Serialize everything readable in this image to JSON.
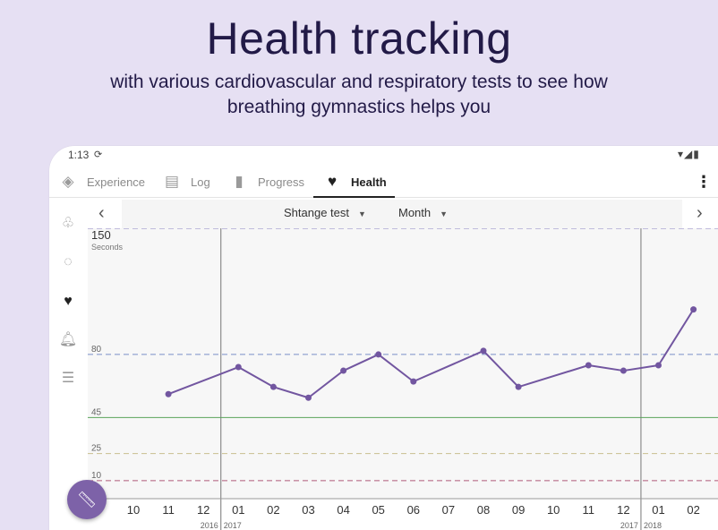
{
  "promo": {
    "title": "Health tracking",
    "subtitle_line1": "with various cardiovascular and respiratory tests to see how",
    "subtitle_line2": "breathing gymnastics helps you"
  },
  "status_bar": {
    "time": "1:13",
    "sync_icon": "sync-icon",
    "icons": "▾◢▮"
  },
  "tabs": [
    {
      "label": "Experience",
      "icon": "compass-icon",
      "active": false
    },
    {
      "label": "Log",
      "icon": "list-icon",
      "active": false
    },
    {
      "label": "Progress",
      "icon": "bar-chart-icon",
      "active": false
    },
    {
      "label": "Health",
      "icon": "heart-icon",
      "active": true
    }
  ],
  "overflow_label": "⋮",
  "sidebar": [
    {
      "icon": "lungs-icon"
    },
    {
      "icon": "timer-cycle-icon"
    },
    {
      "icon": "heart-icon",
      "active": true
    },
    {
      "icon": "bell-icon"
    },
    {
      "icon": "sliders-icon"
    }
  ],
  "selectors": {
    "test": "Shtange test",
    "period": "Month"
  },
  "fab_icon": "ruler-icon",
  "colors": {
    "accent": "#7d62a8",
    "line": "#7256a0",
    "green": "#5aa45a",
    "blue": "#7a90c8",
    "khaki": "#c8c090",
    "magenta": "#b05a7a"
  },
  "chart_data": {
    "type": "line",
    "ymax_label": "150",
    "unit": "Seconds",
    "ylim": [
      0,
      150
    ],
    "reference_lines": [
      {
        "value": 150,
        "label": "",
        "color": "#8a7fc0",
        "style": "dashed"
      },
      {
        "value": 80,
        "label": "80",
        "color": "#7a90c8",
        "style": "dashed"
      },
      {
        "value": 45,
        "label": "45",
        "color": "#5aa45a",
        "style": "solid"
      },
      {
        "value": 25,
        "label": "25",
        "color": "#c8c090",
        "style": "dashed"
      },
      {
        "value": 10,
        "label": "10",
        "color": "#b05a7a",
        "style": "dashed"
      }
    ],
    "x_ticks": [
      "10",
      "11",
      "12",
      "01",
      "02",
      "03",
      "04",
      "05",
      "06",
      "07",
      "08",
      "09",
      "10",
      "11",
      "12",
      "01",
      "02"
    ],
    "year_labels": [
      {
        "tick_index": 2,
        "label": "2016",
        "side": "left"
      },
      {
        "tick_index": 3,
        "label": "2017",
        "side": "right"
      },
      {
        "tick_index": 14,
        "label": "2017",
        "side": "left"
      },
      {
        "tick_index": 15,
        "label": "2018",
        "side": "right"
      }
    ],
    "year_boundaries_after_tick": [
      2,
      14
    ],
    "series": [
      {
        "points": [
          {
            "tick_index": 1.0,
            "y": 58
          },
          {
            "tick_index": 3.0,
            "y": 73
          },
          {
            "tick_index": 4.0,
            "y": 62
          },
          {
            "tick_index": 5.0,
            "y": 56
          },
          {
            "tick_index": 6.0,
            "y": 71
          },
          {
            "tick_index": 7.0,
            "y": 80
          },
          {
            "tick_index": 8.0,
            "y": 65
          },
          {
            "tick_index": 10.0,
            "y": 82
          },
          {
            "tick_index": 11.0,
            "y": 62
          },
          {
            "tick_index": 13.0,
            "y": 74
          },
          {
            "tick_index": 14.0,
            "y": 71
          },
          {
            "tick_index": 15.0,
            "y": 74
          },
          {
            "tick_index": 16.0,
            "y": 105
          }
        ]
      }
    ]
  }
}
